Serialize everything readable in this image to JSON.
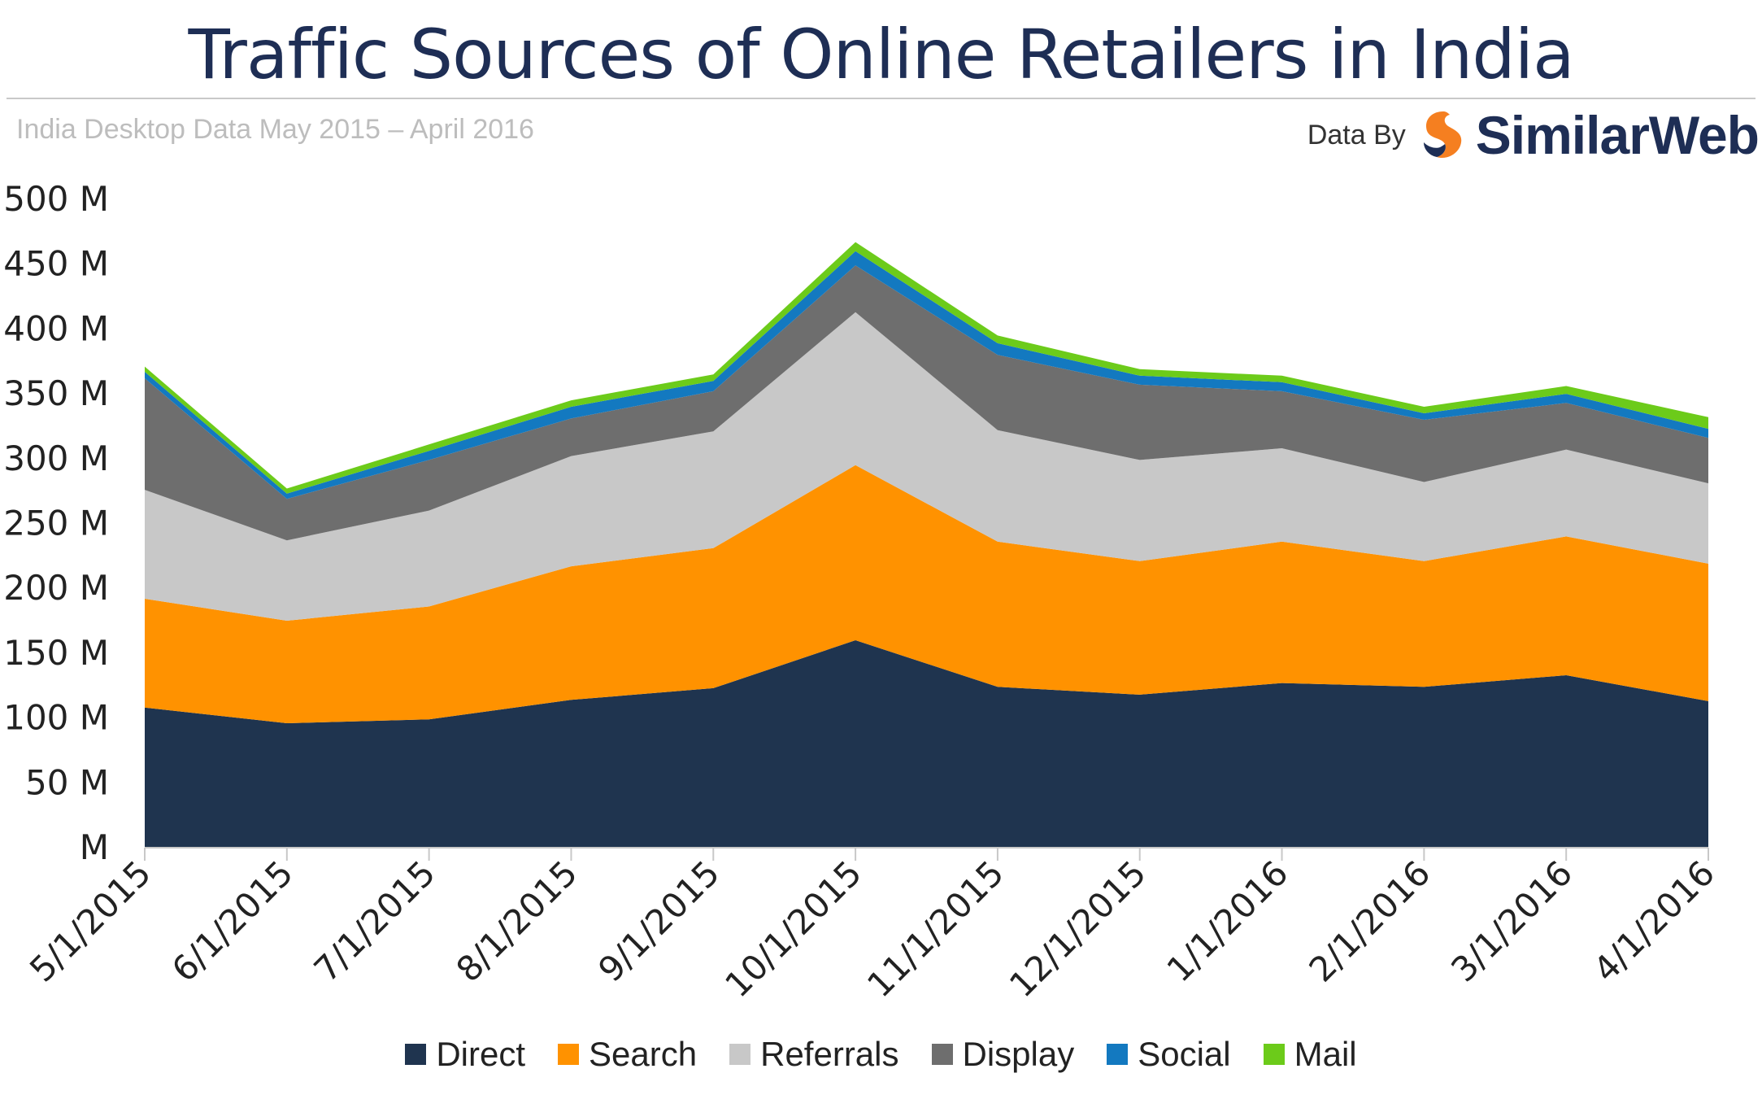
{
  "header": {
    "title": "Traffic Sources of Online Retailers in India",
    "subtitle": "India Desktop Data May 2015 – April 2016",
    "data_by": "Data By",
    "brand": "SimilarWeb"
  },
  "colors": {
    "Direct": "#1f344f",
    "Search": "#ff9200",
    "Referrals": "#c8c8c8",
    "Display": "#6e6e6e",
    "Social": "#1379c0",
    "Mail": "#6ccb1a",
    "brand_orange": "#f57f20",
    "brand_navy": "#1e2e55"
  },
  "chart_data": {
    "type": "area",
    "stacked": true,
    "title": "Traffic Sources of Online Retailers in India",
    "subtitle": "India Desktop Data May 2015 – April 2016",
    "x": [
      "5/1/2015",
      "6/1/2015",
      "7/1/2015",
      "8/1/2015",
      "9/1/2015",
      "10/1/2015",
      "11/1/2015",
      "12/1/2015",
      "1/1/2016",
      "2/1/2016",
      "3/1/2016",
      "4/1/2016"
    ],
    "y_ticks": [
      "M",
      "50 M",
      "100 M",
      "150 M",
      "200 M",
      "250 M",
      "300 M",
      "350 M",
      "400 M",
      "450 M",
      "500 M"
    ],
    "ylim": [
      0,
      500
    ],
    "y_unit": "M",
    "legend_position": "bottom",
    "grid": false,
    "series": [
      {
        "name": "Direct",
        "values": [
          108,
          96,
          99,
          114,
          123,
          160,
          124,
          118,
          127,
          124,
          133,
          113
        ]
      },
      {
        "name": "Search",
        "values": [
          84,
          79,
          87,
          103,
          108,
          135,
          112,
          103,
          109,
          97,
          107,
          106
        ]
      },
      {
        "name": "Referrals",
        "values": [
          84,
          62,
          74,
          85,
          90,
          118,
          86,
          78,
          72,
          61,
          67,
          62
        ]
      },
      {
        "name": "Display",
        "values": [
          86,
          32,
          39,
          29,
          31,
          36,
          58,
          58,
          44,
          48,
          36,
          35
        ]
      },
      {
        "name": "Social",
        "values": [
          5,
          4,
          7,
          9,
          8,
          11,
          9,
          7,
          7,
          5,
          7,
          7
        ]
      },
      {
        "name": "Mail",
        "values": [
          4,
          4,
          5,
          5,
          5,
          7,
          6,
          5,
          5,
          5,
          6,
          9
        ]
      }
    ]
  }
}
